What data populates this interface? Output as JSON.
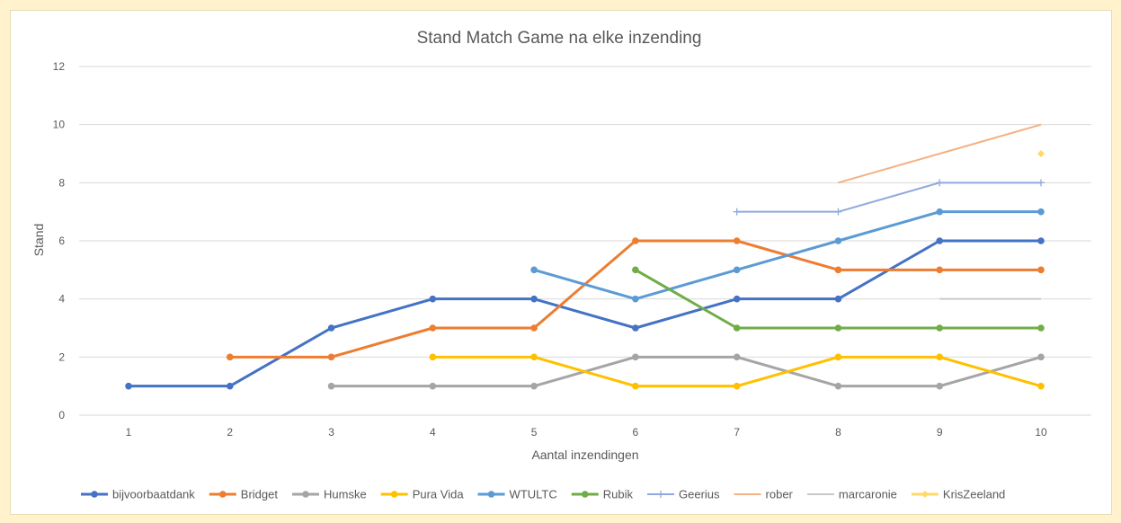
{
  "chart_data": {
    "type": "line",
    "title": "Stand Match Game na elke inzending",
    "xlabel": "Aantal inzendingen",
    "ylabel": "Stand",
    "x": [
      1,
      2,
      3,
      4,
      5,
      6,
      7,
      8,
      9,
      10
    ],
    "xticks": [
      "1",
      "2",
      "3",
      "4",
      "5",
      "6",
      "7",
      "8",
      "9",
      "10"
    ],
    "yticks": [
      "0",
      "2",
      "4",
      "6",
      "8",
      "10",
      "12"
    ],
    "ylim": [
      0,
      12
    ],
    "grid": true,
    "legend": "bottom",
    "series": [
      {
        "name": "bijvoorbaatdank",
        "color": "#4472C4",
        "marker": "circle",
        "values": [
          1,
          1,
          3,
          4,
          4,
          3,
          4,
          4,
          6,
          6
        ]
      },
      {
        "name": "Bridget",
        "color": "#ED7D31",
        "marker": "circle",
        "values": [
          null,
          2,
          2,
          3,
          3,
          6,
          6,
          5,
          5,
          5
        ]
      },
      {
        "name": "Humske",
        "color": "#A5A5A5",
        "marker": "circle",
        "values": [
          null,
          null,
          1,
          1,
          1,
          2,
          2,
          1,
          1,
          2
        ]
      },
      {
        "name": "Pura Vida",
        "color": "#FFC000",
        "marker": "circle",
        "values": [
          null,
          null,
          null,
          2,
          2,
          1,
          1,
          2,
          2,
          1
        ]
      },
      {
        "name": "WTULTC",
        "color": "#5B9BD5",
        "marker": "circle",
        "values": [
          null,
          null,
          null,
          null,
          5,
          4,
          5,
          6,
          7,
          7
        ]
      },
      {
        "name": "Rubik",
        "color": "#70AD47",
        "marker": "circle",
        "values": [
          null,
          null,
          null,
          null,
          null,
          5,
          3,
          3,
          3,
          3
        ]
      },
      {
        "name": "Geerius",
        "color": "#8FAADC",
        "marker": "plus",
        "values": [
          null,
          null,
          null,
          null,
          null,
          null,
          7,
          7,
          8,
          8
        ]
      },
      {
        "name": "rober",
        "color": "#F4B183",
        "marker": "none",
        "values": [
          null,
          null,
          null,
          null,
          null,
          null,
          null,
          8,
          9,
          10
        ]
      },
      {
        "name": "marcaronie",
        "color": "#C9C9C9",
        "marker": "none",
        "values": [
          null,
          null,
          null,
          null,
          null,
          null,
          null,
          null,
          4,
          4
        ]
      },
      {
        "name": "KrisZeeland",
        "color": "#FFD966",
        "marker": "diamond",
        "values": [
          null,
          null,
          null,
          null,
          null,
          null,
          null,
          null,
          null,
          9
        ]
      }
    ]
  }
}
